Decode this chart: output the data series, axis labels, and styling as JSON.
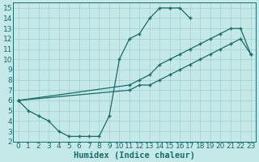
{
  "bg_color": "#c5e8e8",
  "line_color": "#1a6b6b",
  "grid_color": "#a8d4d4",
  "xlabel": "Humidex (Indice chaleur)",
  "xlim": [
    -0.5,
    23.5
  ],
  "ylim": [
    2,
    15.5
  ],
  "xticks": [
    0,
    1,
    2,
    3,
    4,
    5,
    6,
    7,
    8,
    9,
    10,
    11,
    12,
    13,
    14,
    15,
    16,
    17,
    18,
    19,
    20,
    21,
    22,
    23
  ],
  "yticks": [
    2,
    3,
    4,
    5,
    6,
    7,
    8,
    9,
    10,
    11,
    12,
    13,
    14,
    15
  ],
  "curves": [
    {
      "x": [
        0,
        1,
        2,
        3,
        4,
        5,
        6,
        7,
        8,
        9,
        10,
        11,
        12,
        13,
        14,
        15,
        16,
        17
      ],
      "y": [
        6,
        5,
        4.5,
        4,
        3,
        2.5,
        2.5,
        2.5,
        2.5,
        4.5,
        10,
        12,
        12.5,
        14,
        15,
        15,
        15,
        14
      ]
    },
    {
      "x": [
        0,
        11,
        12,
        13,
        14,
        15,
        16,
        17,
        18,
        19,
        20,
        21,
        22,
        23
      ],
      "y": [
        6,
        7.5,
        8,
        8.5,
        9.5,
        10,
        10.5,
        11,
        11.5,
        12,
        12.5,
        13,
        13,
        10.5
      ]
    },
    {
      "x": [
        0,
        11,
        12,
        13,
        14,
        15,
        16,
        17,
        18,
        19,
        20,
        21,
        22,
        23
      ],
      "y": [
        6,
        7,
        7.5,
        7.5,
        8,
        8.5,
        9,
        9.5,
        10,
        10.5,
        11,
        11.5,
        12,
        10.5
      ]
    }
  ],
  "tick_fontsize": 6.5,
  "xlabel_fontsize": 7.5
}
